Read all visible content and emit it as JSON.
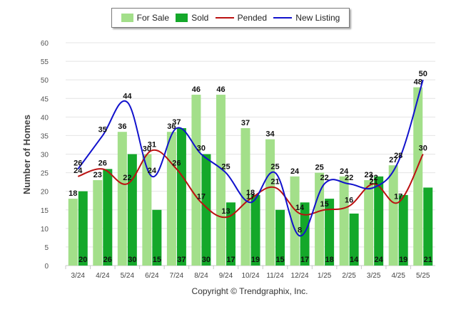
{
  "chart_data": {
    "type": "bar",
    "ylabel": "Number of Homes",
    "footer": "Copyright © Trendgraphix, Inc.",
    "ylim": [
      0,
      60
    ],
    "yticks": [
      "0",
      "5",
      "10",
      "15",
      "20",
      "25",
      "30",
      "35",
      "40",
      "45",
      "50",
      "55",
      "60"
    ],
    "categories": [
      "3/24",
      "4/24",
      "5/24",
      "6/24",
      "7/24",
      "8/24",
      "9/24",
      "10/24",
      "11/24",
      "12/24",
      "1/25",
      "2/25",
      "3/25",
      "4/25",
      "5/25"
    ],
    "legend_position": "top-center",
    "grid": true,
    "series": [
      {
        "name": "For Sale",
        "kind": "bar",
        "color": "#a3df8a",
        "values": [
          18,
          23,
          36,
          30,
          36,
          46,
          46,
          37,
          34,
          24,
          25,
          24,
          23,
          27,
          48
        ]
      },
      {
        "name": "Sold",
        "kind": "bar",
        "color": "#14a82a",
        "values": [
          20,
          26,
          30,
          15,
          37,
          30,
          17,
          19,
          15,
          17,
          18,
          14,
          24,
          19,
          21
        ]
      },
      {
        "name": "Pended",
        "kind": "line",
        "color": "#bb1111",
        "values": [
          24,
          26,
          22,
          31,
          26,
          17,
          13,
          18,
          21,
          14,
          15,
          16,
          22,
          17,
          30
        ]
      },
      {
        "name": "New Listing",
        "kind": "line",
        "color": "#1111cc",
        "values": [
          26,
          35,
          44,
          24,
          37,
          30,
          25,
          17,
          25,
          8,
          22,
          22,
          21,
          28,
          50
        ]
      }
    ]
  }
}
